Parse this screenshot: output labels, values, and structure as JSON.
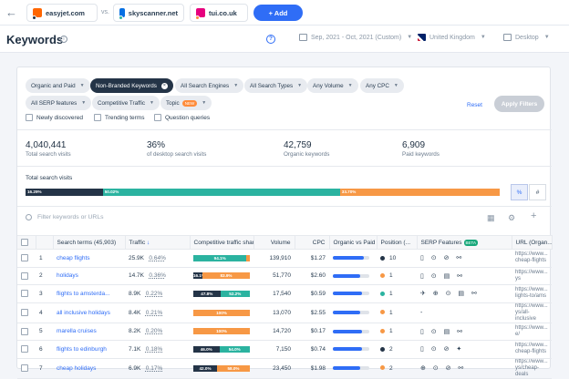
{
  "topbar": {
    "sites": [
      {
        "name": "easyjet.com",
        "icon_color": "#ff6600",
        "dot_color": "#243447"
      },
      {
        "name": "skyscanner.net",
        "icon_color": "#0770e3",
        "dot_color": "#2bb3a0"
      },
      {
        "name": "tui.co.uk",
        "icon_color": "#e6007e",
        "dot_color": "#ff8c3b"
      }
    ],
    "vs": "vs.",
    "add_label": "+ Add"
  },
  "header": {
    "title": "Keywords",
    "date_range": "Sep, 2021 - Oct, 2021 (Custom)",
    "country": "United Kingdom",
    "device": "Desktop"
  },
  "filters": {
    "chips": [
      {
        "label": "Organic and Paid"
      },
      {
        "label": "Non-Branded Keywords"
      },
      {
        "label": "All Search Engines"
      },
      {
        "label": "All Search Types"
      },
      {
        "label": "Any Volume"
      },
      {
        "label": "Any CPC"
      },
      {
        "label": "All SERP features"
      },
      {
        "label": "Competitive Traffic"
      },
      {
        "label": "Topic",
        "badge": "NEW"
      }
    ],
    "checkboxes": [
      "Newly discovered",
      "Trending terms",
      "Question queries"
    ],
    "reset_label": "Reset",
    "apply_label": "Apply Filters"
  },
  "stats": [
    {
      "value": "4,040,441",
      "label": "Total search visits"
    },
    {
      "value": "36%",
      "label": "of desktop search visits"
    },
    {
      "value": "42,759",
      "label": "Organic keywords"
    },
    {
      "value": "6,909",
      "label": "Paid keywords"
    }
  ],
  "share_bar": {
    "title": "Total search visits",
    "segments": [
      {
        "label": "16.29%",
        "value": 16.29,
        "color": "#243447"
      },
      {
        "label": "50.02%",
        "value": 50.02,
        "color": "#2bb3a0"
      },
      {
        "label": "33.70%",
        "value": 33.7,
        "color": "#f79845"
      }
    ],
    "toggle_pct": "%",
    "toggle_num": "#"
  },
  "table": {
    "search_placeholder": "Filter keywords or URLs",
    "headers": {
      "term": "Search terms (45,903)",
      "traffic": "Traffic",
      "share": "Competitive traffic share",
      "volume": "Volume",
      "cpc": "CPC",
      "ovp": "Organic vs Paid",
      "position": "Position (...",
      "serp": "SERP Features",
      "serp_badge": "BETA",
      "url": "URL (Organ..."
    },
    "rows": [
      {
        "n": "1",
        "kw": "cheap flights",
        "traffic": "25.9K",
        "pct": "0.64%",
        "shares": [
          0,
          94.1,
          5.9
        ],
        "labels": [
          "",
          "94.1%",
          ""
        ],
        "volume": "139,910",
        "cpc": "$1.27",
        "ovp": 0.85,
        "pos": "10",
        "pos_color": "#243447",
        "serp": "▯ ⊙ ⊘ ⚯",
        "url": "https://www...\ncheap-flights"
      },
      {
        "n": "2",
        "kw": "holidays",
        "traffic": "14.7K",
        "pct": "0.36%",
        "shares": [
          16.1,
          0,
          83.9
        ],
        "labels": [
          "16.1%",
          "",
          "83.9%"
        ],
        "volume": "51,770",
        "cpc": "$2.60",
        "ovp": 0.75,
        "pos": "1",
        "pos_color": "#f79845",
        "serp": "▯ ⊙ ▤ ⚯",
        "url": "https://www...\nys"
      },
      {
        "n": "3",
        "kw": "flights to amsterda...",
        "traffic": "8.9K",
        "pct": "0.22%",
        "shares": [
          47.8,
          52.2,
          0
        ],
        "labels": [
          "47.8%",
          "52.2%",
          ""
        ],
        "volume": "17,540",
        "cpc": "$0.59",
        "ovp": 0.8,
        "pos": "1",
        "pos_color": "#2bb3a0",
        "serp": "✈ ⊕ ⊙ ▤ ⚯",
        "url": "https://www...\nlights-to/ams"
      },
      {
        "n": "4",
        "kw": "all inclusive holidays",
        "traffic": "8.4K",
        "pct": "0.21%",
        "shares": [
          0,
          0,
          100
        ],
        "labels": [
          "",
          "",
          "100%"
        ],
        "volume": "13,070",
        "cpc": "$2.55",
        "ovp": 0.75,
        "pos": "1",
        "pos_color": "#f79845",
        "serp": "-",
        "url": "https://www...\nys/all-inclusive"
      },
      {
        "n": "5",
        "kw": "marella cruises",
        "traffic": "8.2K",
        "pct": "0.20%",
        "shares": [
          0,
          0,
          100
        ],
        "labels": [
          "",
          "",
          "100%"
        ],
        "volume": "14,720",
        "cpc": "$0.17",
        "ovp": 0.8,
        "pos": "1",
        "pos_color": "#f79845",
        "serp": "▯ ⊙ ▤ ⚯",
        "url": "https://www...\ne/"
      },
      {
        "n": "6",
        "kw": "flights to edinburgh",
        "traffic": "7.1K",
        "pct": "0.18%",
        "shares": [
          46,
          54,
          0
        ],
        "labels": [
          "46.0%",
          "54.0%",
          ""
        ],
        "volume": "7,150",
        "cpc": "$0.74",
        "ovp": 0.8,
        "pos": "2",
        "pos_color": "#243447",
        "serp": "▯ ⊙ ⊘ ✦",
        "url": "https://www...\ncheap-flights"
      },
      {
        "n": "7",
        "kw": "cheap holidays",
        "traffic": "6.9K",
        "pct": "0.17%",
        "shares": [
          42,
          0,
          58
        ],
        "labels": [
          "42.0%",
          "",
          "58.0%"
        ],
        "volume": "23,450",
        "cpc": "$1.98",
        "ovp": 0.75,
        "pos": "2",
        "pos_color": "#f79845",
        "serp": "⊕ ⊙ ⊘ ⚯",
        "url": "https://www...\nys/cheap-deals"
      }
    ]
  }
}
